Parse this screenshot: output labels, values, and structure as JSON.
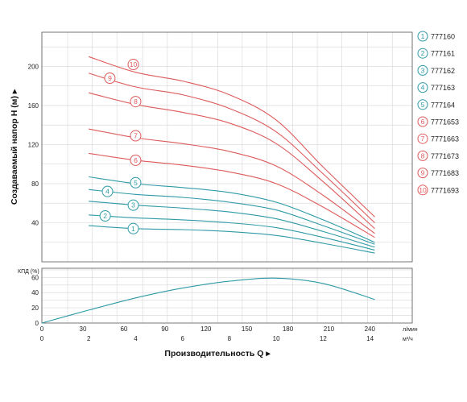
{
  "colors": {
    "teal": "#2e9aa6",
    "red": "#dd5a5a",
    "grid": "#d6d6d6",
    "axis": "#555555"
  },
  "chart_data": [
    {
      "type": "line",
      "ylabel": "Создаваемый напор H (м) ▸",
      "ylim": [
        0,
        235
      ],
      "yticks": [
        40,
        80,
        120,
        160,
        200
      ],
      "xlim": [
        0,
        15.8
      ],
      "grid": true,
      "legend_placement": "right",
      "series": [
        {
          "id": 1,
          "name": "777160",
          "color": "teal",
          "x": [
            2,
            4,
            6,
            8,
            10,
            12,
            14.2
          ],
          "y": [
            37,
            34,
            33,
            31,
            27,
            19,
            9
          ],
          "badge_x": 3.9,
          "badge_y": 34
        },
        {
          "id": 2,
          "name": "777161",
          "color": "teal",
          "x": [
            2,
            4,
            6,
            8,
            10,
            12,
            14.2
          ],
          "y": [
            48,
            45,
            43,
            40,
            35,
            25,
            12
          ],
          "badge_x": 2.7,
          "badge_y": 47
        },
        {
          "id": 3,
          "name": "777162",
          "color": "teal",
          "x": [
            2,
            4,
            6,
            8,
            10,
            12,
            14.2
          ],
          "y": [
            62,
            58,
            55,
            51,
            44,
            31,
            15
          ],
          "badge_x": 3.9,
          "badge_y": 58
        },
        {
          "id": 4,
          "name": "777163",
          "color": "teal",
          "x": [
            2,
            4,
            6,
            8,
            10,
            12,
            14.2
          ],
          "y": [
            74,
            69,
            66,
            61,
            53,
            37,
            18
          ],
          "badge_x": 2.8,
          "badge_y": 72
        },
        {
          "id": 5,
          "name": "777164",
          "color": "teal",
          "x": [
            2,
            4,
            6,
            8,
            10,
            12,
            14.2
          ],
          "y": [
            87,
            80,
            76,
            71,
            61,
            43,
            20
          ],
          "badge_x": 4.0,
          "badge_y": 81
        },
        {
          "id": 6,
          "name": "7771653",
          "color": "red",
          "x": [
            2,
            4,
            6,
            8,
            10,
            12,
            14.2
          ],
          "y": [
            111,
            104,
            99,
            92,
            80,
            56,
            25
          ],
          "badge_x": 4.0,
          "badge_y": 104
        },
        {
          "id": 7,
          "name": "7771663",
          "color": "red",
          "x": [
            2,
            4,
            6,
            8,
            10,
            12,
            14.2
          ],
          "y": [
            136,
            127,
            121,
            113,
            98,
            68,
            29
          ],
          "badge_x": 4.0,
          "badge_y": 129
        },
        {
          "id": 8,
          "name": "7771673",
          "color": "red",
          "x": [
            2,
            4,
            6,
            8,
            10,
            12,
            14.2
          ],
          "y": [
            173,
            161,
            153,
            142,
            121,
            82,
            34
          ],
          "badge_x": 4.0,
          "badge_y": 164
        },
        {
          "id": 9,
          "name": "7771683",
          "color": "red",
          "x": [
            2,
            4,
            6,
            8,
            10,
            12,
            14.2
          ],
          "y": [
            193,
            179,
            171,
            157,
            133,
            90,
            40
          ],
          "badge_x": 2.9,
          "badge_y": 188
        },
        {
          "id": 10,
          "name": "7771693",
          "color": "red",
          "x": [
            2,
            4,
            6,
            8,
            10,
            12,
            14.2
          ],
          "y": [
            210,
            194,
            185,
            171,
            145,
            97,
            46
          ],
          "badge_x": 3.9,
          "badge_y": 202
        }
      ]
    },
    {
      "type": "line",
      "ylabel": "КПД (%)",
      "ylim": [
        0,
        72
      ],
      "yticks": [
        0,
        20,
        40,
        60
      ],
      "xlim": [
        0,
        15.8
      ],
      "grid": true,
      "series": [
        {
          "color": "teal",
          "x": [
            0,
            2,
            4,
            6,
            8,
            10,
            12,
            14.2
          ],
          "y": [
            0,
            17,
            33,
            46,
            55,
            59,
            52,
            31
          ]
        }
      ],
      "x_axis_top": {
        "ticks": [
          "0",
          "30",
          "60",
          "90",
          "120",
          "150",
          "180",
          "210",
          "240"
        ],
        "unit": "л/мин"
      },
      "x_axis_bottom": {
        "ticks": [
          "0",
          "2",
          "4",
          "6",
          "8",
          "10",
          "12",
          "14"
        ],
        "unit": "м³/ч"
      },
      "xlabel": "Производительность Q ▸"
    }
  ]
}
